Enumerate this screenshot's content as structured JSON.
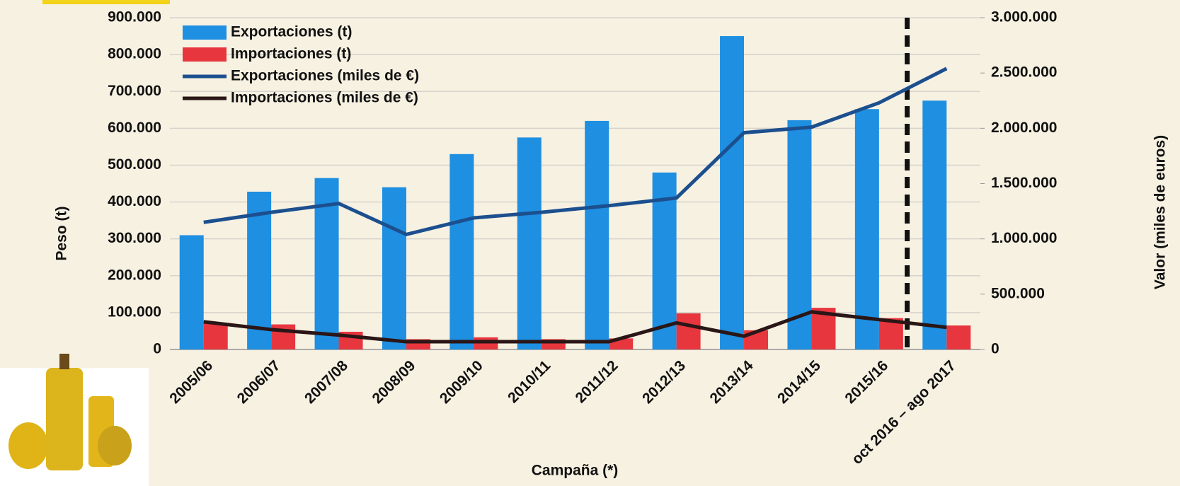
{
  "chart_data": {
    "type": "bar",
    "x_label": "Campaña (*)",
    "y_label": "Peso (t)",
    "y2_label": "Valor (miles de euros)",
    "categories": [
      "2005/06",
      "2006/07",
      "2007/08",
      "2008/09",
      "2009/10",
      "2010/11",
      "2011/12",
      "2012/13",
      "2013/14",
      "2014/15",
      "2015/16",
      "oct 2016 – ago 2017"
    ],
    "series": [
      {
        "name": "Exportaciones (t)",
        "type": "bar",
        "color": "#1e8fe1",
        "values": [
          310000,
          428000,
          465000,
          440000,
          530000,
          575000,
          620000,
          480000,
          850000,
          622000,
          652000,
          675000
        ]
      },
      {
        "name": "Importaciones (t)",
        "type": "bar",
        "color": "#e8363e",
        "values": [
          70000,
          68000,
          48000,
          28000,
          33000,
          28000,
          30000,
          98000,
          52000,
          113000,
          85000,
          65000
        ]
      },
      {
        "name": "Exportaciones (miles de €)",
        "type": "line",
        "axis": "y2",
        "color": "#1c4f8e",
        "values": [
          1150000,
          1240000,
          1320000,
          1040000,
          1190000,
          1240000,
          1300000,
          1370000,
          1960000,
          2010000,
          2230000,
          2540000
        ]
      },
      {
        "name": "Importaciones (miles de €)",
        "type": "line",
        "axis": "y2",
        "color": "#2a1616",
        "values": [
          250000,
          180000,
          130000,
          70000,
          70000,
          70000,
          70000,
          240000,
          120000,
          340000,
          270000,
          200000
        ]
      }
    ],
    "ylim": [
      0,
      900000
    ],
    "yticks": [
      0,
      {
        "value": 100000,
        "label": "100.000"
      },
      {
        "value": 200000,
        "label": "200.000"
      },
      {
        "value": 300000,
        "label": "300.000"
      },
      {
        "value": 400000,
        "label": "400.000"
      },
      {
        "value": 500000,
        "label": "500.000"
      },
      {
        "value": 600000,
        "label": "600.000"
      },
      {
        "value": 700000,
        "label": "700.000"
      },
      {
        "value": 800000,
        "label": "800.000"
      },
      {
        "value": 900000,
        "label": "900.000"
      }
    ],
    "y2lim": [
      0,
      3000000
    ],
    "y2ticks": [
      0,
      {
        "value": 500000,
        "label": "500.000"
      },
      {
        "value": 1000000,
        "label": "1.000.000"
      },
      {
        "value": 1500000,
        "label": "1.500.000"
      },
      {
        "value": 2000000,
        "label": "2.000.000"
      },
      {
        "value": 2500000,
        "label": "2.500.000"
      },
      {
        "value": 3000000,
        "label": "3.000.000"
      }
    ],
    "grid": true,
    "legend": "upper left"
  }
}
